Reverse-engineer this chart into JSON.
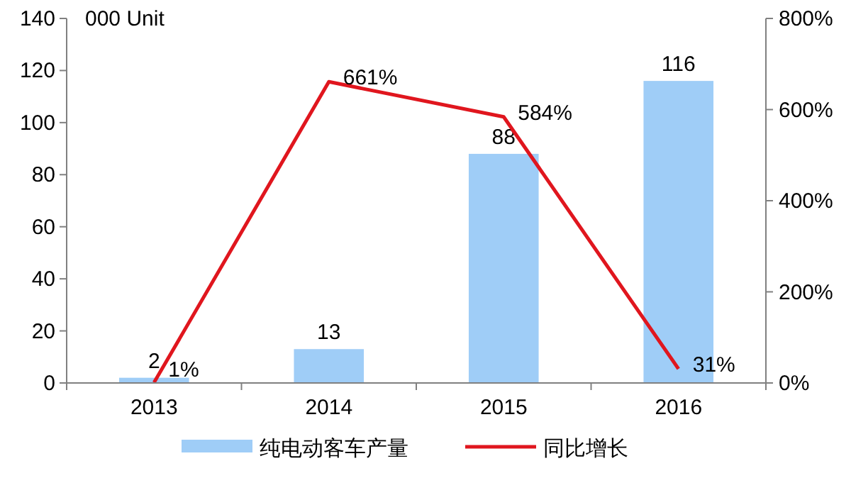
{
  "chart_data": {
    "type": "bar",
    "ylabel": "000 Unit",
    "categories": [
      "2013",
      "2014",
      "2015",
      "2016"
    ],
    "series": [
      {
        "name": "纯电动客车产量",
        "color": "#9fcdf7",
        "values": [
          2,
          13,
          88,
          116
        ]
      },
      {
        "name": "同比增长",
        "type": "line",
        "axis": "y2",
        "color": "#e0161e",
        "values": [
          1,
          661,
          584,
          31
        ],
        "value_labels": [
          "1%",
          "661%",
          "584%",
          "31%"
        ]
      }
    ],
    "ylim": [
      0,
      140
    ],
    "yticks": [
      0,
      20,
      40,
      60,
      80,
      100,
      120,
      140
    ],
    "y2lim": [
      0,
      800
    ],
    "y2ticks": [
      {
        "value": 0,
        "label": "0%"
      },
      {
        "value": 200,
        "label": "200%"
      },
      {
        "value": 400,
        "label": "400%"
      },
      {
        "value": 600,
        "label": "600%"
      },
      {
        "value": 800,
        "label": "800%"
      }
    ],
    "data_labels": true,
    "legend": "bottom",
    "grid": false,
    "line_style": "solid"
  }
}
